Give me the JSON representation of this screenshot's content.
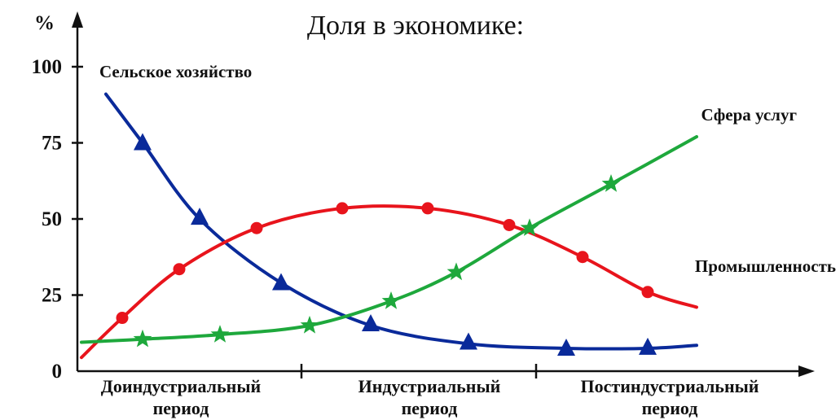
{
  "chart_data": {
    "type": "line",
    "title": "Доля в экономике:",
    "ylabel": "%",
    "xlabel": "",
    "ylim": [
      0,
      100
    ],
    "yticks": [
      0,
      25,
      50,
      75,
      100
    ],
    "xlim": [
      0,
      9
    ],
    "grid": false,
    "periods": [
      {
        "line1": "Доиндустриальный",
        "line2": "период"
      },
      {
        "line1": "Индустриальный",
        "line2": "период"
      },
      {
        "line1": "Постиндустриальный",
        "line2": "период"
      }
    ],
    "series": [
      {
        "name": "Сельское хозяйство",
        "color": "#0a2a9a",
        "marker": "triangle",
        "curve": [
          [
            0.35,
            91
          ],
          [
            0.8,
            75
          ],
          [
            1.5,
            50
          ],
          [
            2.5,
            29
          ],
          [
            3.6,
            15
          ],
          [
            4.8,
            9
          ],
          [
            6.0,
            7.5
          ],
          [
            7.0,
            7.5
          ],
          [
            7.6,
            8.5
          ]
        ],
        "markers": [
          [
            0.8,
            75
          ],
          [
            1.5,
            50.5
          ],
          [
            2.5,
            29
          ],
          [
            3.6,
            15.5
          ],
          [
            4.8,
            9.5
          ],
          [
            6.0,
            7.5
          ],
          [
            7.0,
            7.8
          ]
        ]
      },
      {
        "name": "Промышленность",
        "color": "#e8141c",
        "marker": "circle",
        "curve": [
          [
            0.05,
            4.5
          ],
          [
            0.55,
            17.5
          ],
          [
            1.25,
            33.5
          ],
          [
            2.2,
            47
          ],
          [
            3.25,
            53.5
          ],
          [
            4.3,
            53.5
          ],
          [
            5.3,
            48
          ],
          [
            6.2,
            37.5
          ],
          [
            7.0,
            26
          ],
          [
            7.6,
            21
          ]
        ],
        "markers": [
          [
            0.55,
            17.5
          ],
          [
            1.25,
            33.5
          ],
          [
            2.2,
            47
          ],
          [
            3.25,
            53.5
          ],
          [
            4.3,
            53.5
          ],
          [
            5.3,
            48
          ],
          [
            6.2,
            37.5
          ],
          [
            7.0,
            26
          ]
        ]
      },
      {
        "name": "Сфера услуг",
        "color": "#1ea83c",
        "marker": "star",
        "curve": [
          [
            0.05,
            9.5
          ],
          [
            0.8,
            10.5
          ],
          [
            1.75,
            12
          ],
          [
            2.85,
            15
          ],
          [
            3.85,
            23
          ],
          [
            4.65,
            32.5
          ],
          [
            5.55,
            47
          ],
          [
            6.55,
            61.5
          ],
          [
            7.6,
            77
          ]
        ],
        "markers": [
          [
            0.8,
            10.5
          ],
          [
            1.75,
            12
          ],
          [
            2.85,
            15
          ],
          [
            3.85,
            23
          ],
          [
            4.65,
            32.5
          ],
          [
            5.55,
            47
          ],
          [
            6.55,
            61.5
          ]
        ]
      }
    ]
  }
}
